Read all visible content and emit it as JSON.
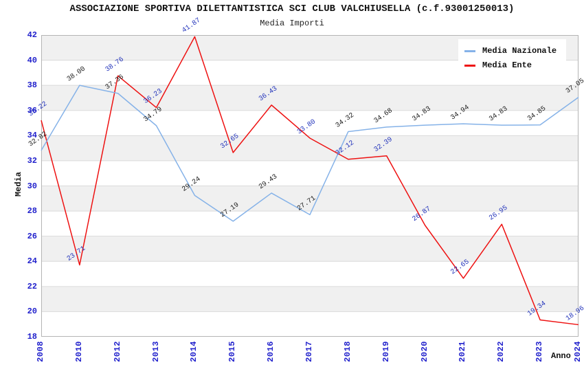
{
  "header": {
    "title": "ASSOCIAZIONE SPORTIVA DILETTANTISTICA SCI CLUB VALCHIUSELLA (c.f.93001250013)",
    "subtitle": "Media Importi"
  },
  "axes": {
    "ylabel": "Media",
    "xlabel": "Anno",
    "tick_color": "#2121CC"
  },
  "legend": {
    "position": "top-right",
    "items": [
      {
        "label": "Media Nazionale",
        "color": "#85B2E8"
      },
      {
        "label": "Media Ente",
        "color": "#EE1111"
      }
    ]
  },
  "colors": {
    "band_gray": "#F0F0F0",
    "gridline": "#DADADA",
    "plot_border": "#B4B4B4",
    "tick_text": "#2121CC",
    "label_black": "#1a1a1a",
    "label_blue": "#2233BB"
  },
  "chart_data": {
    "type": "line",
    "title": "ASSOCIAZIONE SPORTIVA DILETTANTISTICA SCI CLUB VALCHIUSELLA (c.f.93001250013)",
    "subtitle": "Media Importi",
    "xlabel": "Anno",
    "ylabel": "Media",
    "ylim": [
      18,
      42
    ],
    "ytick_step": 2,
    "grid": "horizontal-bands-alternating",
    "legend_position": "top-right",
    "categories": [
      "2008",
      "2010",
      "2012",
      "2013",
      "2014",
      "2015",
      "2016",
      "2017",
      "2018",
      "2019",
      "2020",
      "2021",
      "2022",
      "2023",
      "2024"
    ],
    "series": [
      {
        "name": "Media Nazionale",
        "color": "#85B2E8",
        "label_color": "#1a1a1a",
        "values": [
          32.82,
          38.0,
          37.36,
          34.79,
          29.24,
          27.19,
          29.43,
          27.71,
          34.32,
          34.68,
          34.83,
          34.94,
          34.83,
          34.85,
          37.05
        ]
      },
      {
        "name": "Media Ente",
        "color": "#EE1111",
        "label_color": "#2233BB",
        "values": [
          35.22,
          23.71,
          38.76,
          36.23,
          41.87,
          32.65,
          36.43,
          33.8,
          32.12,
          32.39,
          26.87,
          22.65,
          26.95,
          19.34,
          18.96
        ]
      }
    ]
  }
}
